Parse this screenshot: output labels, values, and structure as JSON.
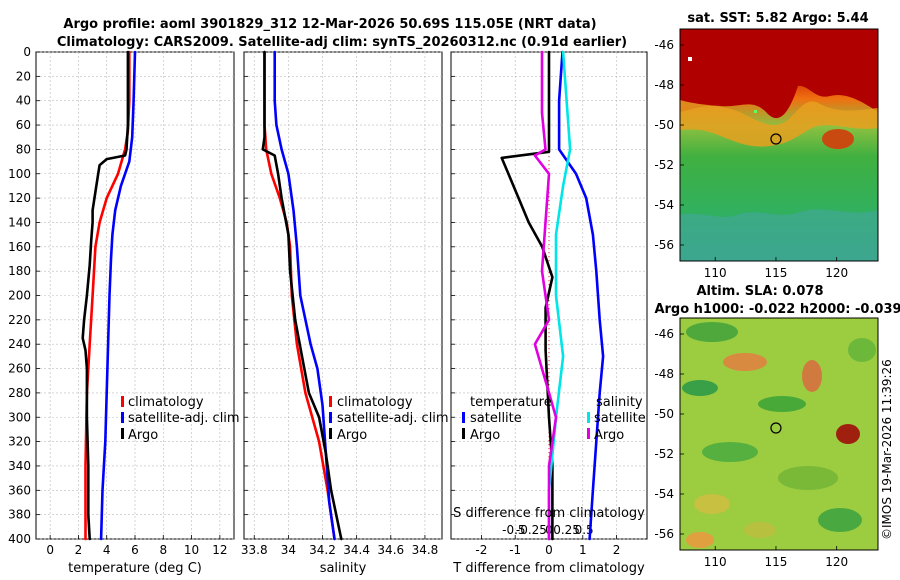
{
  "header": {
    "title_line1": "Argo profile: aoml 3901829_312 12-Mar-2026 50.69S 115.05E (NRT data)",
    "title_line2": "Climatology: CARS2009. Satellite-adj clim: synTS_20260312.nc (0.91d earlier)"
  },
  "credit": "©IMOS 19-Mar-2026 11:39:26",
  "colors": {
    "climatology": "#ff0000",
    "satellite": "#0000ff",
    "argo": "#000000",
    "s_satellite": "#00e5e5",
    "s_argo": "#e000e0"
  },
  "chart_data": [
    {
      "id": "temperature",
      "type": "line",
      "xlabel": "temperature (deg C)",
      "ylabel": "",
      "xlim": [
        -1,
        13
      ],
      "ylim": [
        400,
        0
      ],
      "xticks": [
        0,
        2,
        4,
        6,
        8,
        10,
        12
      ],
      "yticks": [
        0,
        20,
        40,
        60,
        80,
        100,
        120,
        140,
        160,
        180,
        200,
        220,
        240,
        260,
        280,
        300,
        320,
        340,
        360,
        380,
        400
      ],
      "legend": [
        "climatology",
        "satellite-adj. clim",
        "Argo"
      ],
      "series": [
        {
          "name": "climatology",
          "color": "#ff0000",
          "points": [
            [
              5.6,
              0
            ],
            [
              5.6,
              40
            ],
            [
              5.5,
              65
            ],
            [
              5.3,
              80
            ],
            [
              4.8,
              100
            ],
            [
              4.0,
              120
            ],
            [
              3.5,
              140
            ],
            [
              3.2,
              160
            ],
            [
              3.0,
              200
            ],
            [
              2.8,
              240
            ],
            [
              2.6,
              280
            ],
            [
              2.5,
              340
            ],
            [
              2.5,
              400
            ]
          ]
        },
        {
          "name": "satellite-adj. clim",
          "color": "#0000ff",
          "points": [
            [
              6.0,
              0
            ],
            [
              5.9,
              40
            ],
            [
              5.8,
              70
            ],
            [
              5.6,
              90
            ],
            [
              5.0,
              110
            ],
            [
              4.6,
              130
            ],
            [
              4.4,
              150
            ],
            [
              4.3,
              170
            ],
            [
              4.2,
              200
            ],
            [
              4.1,
              240
            ],
            [
              4.0,
              280
            ],
            [
              3.9,
              320
            ],
            [
              3.7,
              360
            ],
            [
              3.6,
              400
            ]
          ]
        },
        {
          "name": "Argo",
          "color": "#000000",
          "points": [
            [
              5.5,
              0
            ],
            [
              5.5,
              20
            ],
            [
              5.5,
              60
            ],
            [
              5.4,
              80
            ],
            [
              5.3,
              85
            ],
            [
              4.0,
              88
            ],
            [
              3.5,
              93
            ],
            [
              3.4,
              100
            ],
            [
              3.2,
              115
            ],
            [
              3.0,
              130
            ],
            [
              3.0,
              140
            ],
            [
              2.9,
              155
            ],
            [
              2.8,
              175
            ],
            [
              2.6,
              200
            ],
            [
              2.4,
              220
            ],
            [
              2.3,
              235
            ],
            [
              2.5,
              245
            ],
            [
              2.6,
              260
            ],
            [
              2.6,
              300
            ],
            [
              2.7,
              340
            ],
            [
              2.7,
              380
            ],
            [
              2.8,
              400
            ]
          ]
        }
      ]
    },
    {
      "id": "salinity",
      "type": "line",
      "xlabel": "salinity",
      "ylabel": "",
      "xlim": [
        33.74,
        34.9
      ],
      "ylim": [
        400,
        0
      ],
      "xticks": [
        33.8,
        34,
        34.2,
        34.4,
        34.6,
        34.8
      ],
      "xticklabels": [
        "33.8",
        "34",
        "34.2",
        "34.4",
        "34.6",
        "34.8"
      ],
      "legend": [
        "climatology",
        "satellite-adj. clim",
        "Argo"
      ],
      "series": [
        {
          "name": "climatology",
          "color": "#ff0000",
          "points": [
            [
              33.86,
              0
            ],
            [
              33.86,
              60
            ],
            [
              33.87,
              80
            ],
            [
              33.9,
              100
            ],
            [
              33.95,
              120
            ],
            [
              33.99,
              140
            ],
            [
              34.01,
              160
            ],
            [
              34.02,
              200
            ],
            [
              34.05,
              240
            ],
            [
              34.1,
              280
            ],
            [
              34.18,
              320
            ],
            [
              34.23,
              360
            ],
            [
              34.27,
              400
            ]
          ]
        },
        {
          "name": "satellite-adj. clim",
          "color": "#0000ff",
          "points": [
            [
              33.92,
              0
            ],
            [
              33.92,
              40
            ],
            [
              33.93,
              60
            ],
            [
              33.96,
              80
            ],
            [
              34.0,
              100
            ],
            [
              34.03,
              130
            ],
            [
              34.05,
              160
            ],
            [
              34.07,
              200
            ],
            [
              34.13,
              240
            ],
            [
              34.17,
              260
            ],
            [
              34.2,
              290
            ],
            [
              34.22,
              330
            ],
            [
              34.24,
              370
            ],
            [
              34.27,
              400
            ]
          ]
        },
        {
          "name": "Argo",
          "color": "#000000",
          "points": [
            [
              33.86,
              0
            ],
            [
              33.86,
              70
            ],
            [
              33.85,
              80
            ],
            [
              33.92,
              85
            ],
            [
              33.94,
              100
            ],
            [
              33.96,
              120
            ],
            [
              34.0,
              150
            ],
            [
              34.01,
              180
            ],
            [
              34.04,
              220
            ],
            [
              34.08,
              250
            ],
            [
              34.12,
              280
            ],
            [
              34.18,
              300
            ],
            [
              34.22,
              330
            ],
            [
              34.25,
              360
            ],
            [
              34.28,
              380
            ],
            [
              34.31,
              400
            ]
          ]
        }
      ]
    },
    {
      "id": "difference",
      "type": "line",
      "xlabel": "T difference from climatology",
      "xlabel2": "S difference from climatology",
      "xlim": [
        -2.9,
        2.9
      ],
      "ylim": [
        400,
        0
      ],
      "xticks": [
        -2,
        -1,
        0,
        1,
        2
      ],
      "xticklabels": [
        "-2",
        "-1",
        "0",
        "1",
        "2"
      ],
      "sticks": [
        -0.5,
        -0.25,
        0,
        0.25,
        0.5
      ],
      "sticklabels": [
        "-0.5",
        "-0.25",
        "0",
        "0.25",
        "0.5"
      ],
      "legend_headers": [
        "temperature",
        "salinity"
      ],
      "legend": [
        "satellite",
        "Argo",
        "satellite",
        "Argo"
      ],
      "series": [
        {
          "name": "T satellite",
          "color": "#0000ff",
          "points": [
            [
              0.4,
              0
            ],
            [
              0.3,
              40
            ],
            [
              0.3,
              80
            ],
            [
              0.8,
              100
            ],
            [
              1.1,
              120
            ],
            [
              1.3,
              150
            ],
            [
              1.4,
              180
            ],
            [
              1.5,
              220
            ],
            [
              1.6,
              250
            ],
            [
              1.5,
              280
            ],
            [
              1.4,
              320
            ],
            [
              1.3,
              360
            ],
            [
              1.2,
              400
            ]
          ]
        },
        {
          "name": "T Argo",
          "color": "#000000",
          "points": [
            [
              0.0,
              0
            ],
            [
              0.0,
              75
            ],
            [
              0.0,
              82
            ],
            [
              -1.4,
              87
            ],
            [
              -1.2,
              100
            ],
            [
              -0.9,
              120
            ],
            [
              -0.6,
              140
            ],
            [
              -0.2,
              160
            ],
            [
              0.1,
              185
            ],
            [
              -0.1,
              210
            ],
            [
              -0.1,
              245
            ],
            [
              0.0,
              300
            ],
            [
              0.1,
              340
            ],
            [
              0.1,
              400
            ]
          ]
        },
        {
          "name": "S satellite",
          "color": "#00e5e5",
          "points": [
            [
              0.2,
              0
            ],
            [
              0.25,
              40
            ],
            [
              0.3,
              80
            ],
            [
              0.2,
              110
            ],
            [
              0.1,
              150
            ],
            [
              0.1,
              200
            ],
            [
              0.2,
              250
            ],
            [
              0.1,
              300
            ],
            [
              0.0,
              360
            ],
            [
              0.0,
              400
            ]
          ]
        },
        {
          "name": "S Argo",
          "color": "#e000e0",
          "points": [
            [
              -0.1,
              0
            ],
            [
              -0.1,
              50
            ],
            [
              -0.05,
              80
            ],
            [
              -0.2,
              85
            ],
            [
              0.0,
              100
            ],
            [
              -0.05,
              140
            ],
            [
              -0.1,
              180
            ],
            [
              0.0,
              220
            ],
            [
              -0.2,
              240
            ],
            [
              0.0,
              280
            ],
            [
              0.1,
              300
            ],
            [
              0.0,
              340
            ],
            [
              0.0,
              400
            ]
          ]
        }
      ]
    },
    {
      "id": "sst-map",
      "type": "heatmap",
      "title": "sat. SST: 5.82 Argo: 5.44",
      "xticks": [
        110,
        115,
        120
      ],
      "yticks": [
        -46,
        -48,
        -50,
        -52,
        -54,
        -56
      ],
      "xlim": [
        107.1,
        123.4
      ],
      "ylim": [
        -56.8,
        -45.2
      ],
      "marker": [
        115,
        -50.7
      ]
    },
    {
      "id": "sla-map",
      "type": "heatmap",
      "title": "Altim. SLA: 0.078",
      "subtitle": "Argo h1000: -0.022 h2000: -0.039",
      "xticks": [
        110,
        115,
        120
      ],
      "yticks": [
        -46,
        -48,
        -50,
        -52,
        -54,
        -56
      ],
      "xlim": [
        107.1,
        123.4
      ],
      "ylim": [
        -56.8,
        -45.2
      ],
      "marker": [
        115,
        -50.7
      ]
    }
  ]
}
